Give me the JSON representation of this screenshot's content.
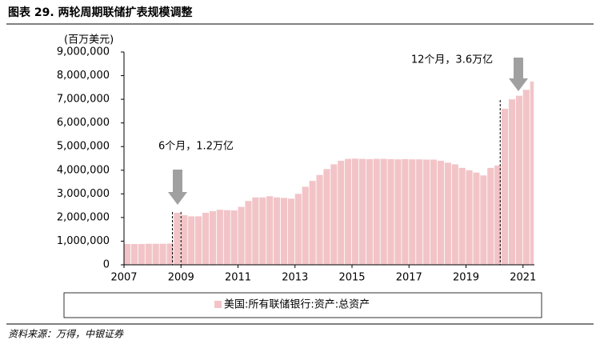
{
  "chart_data": {
    "type": "bar",
    "title": "图表 29. 两轮周期联储扩表规模调整",
    "y_label": "(百万美元)",
    "source": "资料来源：万得，中银证券",
    "annotations": [
      "6个月，1.2万亿",
      "12个月，3.6万亿"
    ],
    "reference_lines": [
      2008.7,
      2009.0,
      2020.2
    ],
    "x": [
      2007,
      2007.25,
      2007.5,
      2007.75,
      2008,
      2008.25,
      2008.5,
      2008.75,
      2009,
      2009.25,
      2009.5,
      2009.75,
      2010,
      2010.25,
      2010.5,
      2010.75,
      2011,
      2011.25,
      2011.5,
      2011.75,
      2012,
      2012.25,
      2012.5,
      2012.75,
      2013,
      2013.25,
      2013.5,
      2013.75,
      2014,
      2014.25,
      2014.5,
      2014.75,
      2015,
      2015.25,
      2015.5,
      2015.75,
      2016,
      2016.25,
      2016.5,
      2016.75,
      2017,
      2017.25,
      2017.5,
      2017.75,
      2018,
      2018.25,
      2018.5,
      2018.75,
      2019,
      2019.25,
      2019.5,
      2019.75,
      2020,
      2020.25,
      2020.5,
      2020.75,
      2021,
      2021.25
    ],
    "series": [
      {
        "name": "美国:所有联储银行:资产:总资产",
        "color": "#f2c4c8",
        "values": [
          880000,
          880000,
          880000,
          890000,
          890000,
          890000,
          900000,
          2200000,
          2100000,
          2050000,
          2050000,
          2200000,
          2270000,
          2330000,
          2310000,
          2300000,
          2450000,
          2700000,
          2850000,
          2850000,
          2900000,
          2850000,
          2830000,
          2800000,
          3000000,
          3300000,
          3550000,
          3800000,
          4050000,
          4250000,
          4400000,
          4480000,
          4490000,
          4480000,
          4470000,
          4480000,
          4480000,
          4470000,
          4460000,
          4470000,
          4460000,
          4460000,
          4450000,
          4450000,
          4400000,
          4320000,
          4250000,
          4100000,
          4000000,
          3900000,
          3780000,
          4100000,
          4200000,
          6600000,
          7000000,
          7150000,
          7400000,
          7750000
        ]
      }
    ],
    "xlim": [
      2007,
      2021.4
    ],
    "xticks": [
      2007,
      2009,
      2011,
      2013,
      2015,
      2017,
      2019,
      2021
    ],
    "ylim": [
      0,
      9000000
    ],
    "yticks": [
      0,
      {
        "value": 1000000,
        "label": "1,000,000"
      },
      {
        "value": 2000000,
        "label": "2,000,000"
      },
      {
        "value": 3000000,
        "label": "3,000,000"
      },
      {
        "value": 4000000,
        "label": "4,000,000"
      },
      {
        "value": 5000000,
        "label": "5,000,000"
      },
      {
        "value": 6000000,
        "label": "6,000,000"
      },
      {
        "value": 7000000,
        "label": "7,000,000"
      },
      {
        "value": 8000000,
        "label": "8,000,000"
      },
      {
        "value": 9000000,
        "label": "9,000,000"
      }
    ]
  }
}
